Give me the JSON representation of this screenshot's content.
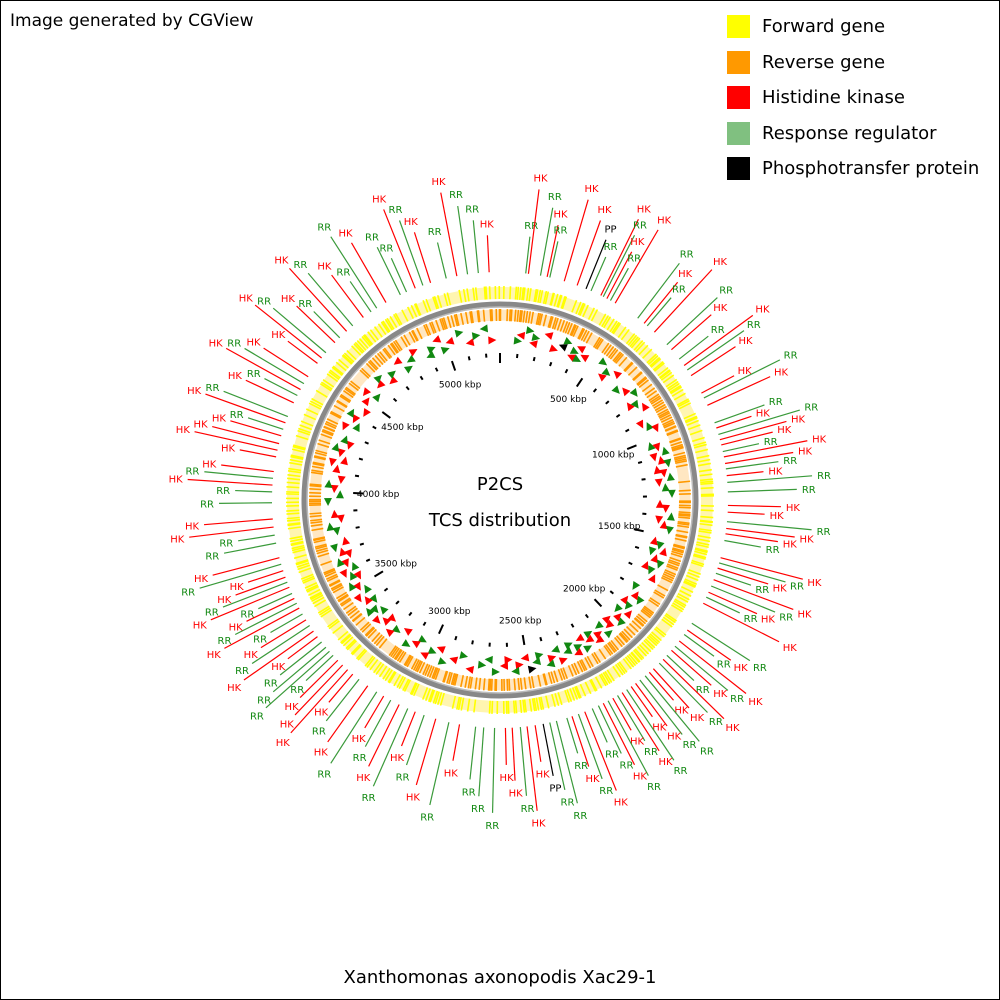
{
  "credit": "Image generated by CGView",
  "center_title": "P2CS",
  "center_subtitle": "TCS distribution",
  "footer": "Xanthomonas axonopodis Xac29-1",
  "legend": [
    {
      "label": "Forward gene",
      "color": "#ffff00"
    },
    {
      "label": "Reverse gene",
      "color": "#ff9900"
    },
    {
      "label": "Histidine kinase",
      "color": "#ff0000"
    },
    {
      "label": "Response regulator",
      "color": "#80c080"
    },
    {
      "label": "Phosphotransfer protein",
      "color": "#000000"
    }
  ],
  "genome_length_kbp": 5280,
  "scale_labels": [
    {
      "kbp": 500,
      "text": "500 kbp"
    },
    {
      "kbp": 1000,
      "text": "1000 kbp"
    },
    {
      "kbp": 1500,
      "text": "1500 kbp"
    },
    {
      "kbp": 2000,
      "text": "2000 kbp"
    },
    {
      "kbp": 2500,
      "text": "2500 kbp"
    },
    {
      "kbp": 3000,
      "text": "3000 kbp"
    },
    {
      "kbp": 3500,
      "text": "3500 kbp"
    },
    {
      "kbp": 4000,
      "text": "4000 kbp"
    },
    {
      "kbp": 4500,
      "text": "4500 kbp"
    },
    {
      "kbp": 5000,
      "text": "5000 kbp"
    }
  ],
  "features": [
    {
      "kbp": 95,
      "type": "RR"
    },
    {
      "kbp": 105,
      "type": "HK"
    },
    {
      "kbp": 150,
      "type": "RR"
    },
    {
      "kbp": 175,
      "type": "HK"
    },
    {
      "kbp": 185,
      "type": "RR"
    },
    {
      "kbp": 240,
      "type": "HK"
    },
    {
      "kbp": 290,
      "type": "HK"
    },
    {
      "kbp": 325,
      "type": "PP"
    },
    {
      "kbp": 345,
      "type": "RR"
    },
    {
      "kbp": 385,
      "type": "HK"
    },
    {
      "kbp": 395,
      "type": "RR"
    },
    {
      "kbp": 410,
      "type": "HK"
    },
    {
      "kbp": 425,
      "type": "RR"
    },
    {
      "kbp": 445,
      "type": "HK"
    },
    {
      "kbp": 545,
      "type": "RR"
    },
    {
      "kbp": 575,
      "type": "HK"
    },
    {
      "kbp": 590,
      "type": "RR"
    },
    {
      "kbp": 625,
      "type": "HK"
    },
    {
      "kbp": 690,
      "type": "RR"
    },
    {
      "kbp": 715,
      "type": "HK"
    },
    {
      "kbp": 760,
      "type": "RR"
    },
    {
      "kbp": 790,
      "type": "HK"
    },
    {
      "kbp": 810,
      "type": "RR"
    },
    {
      "kbp": 835,
      "type": "HK"
    },
    {
      "kbp": 910,
      "type": "HK"
    },
    {
      "kbp": 930,
      "type": "RR"
    },
    {
      "kbp": 960,
      "type": "HK"
    },
    {
      "kbp": 1030,
      "type": "RR"
    },
    {
      "kbp": 1050,
      "type": "HK"
    },
    {
      "kbp": 1075,
      "type": "RR"
    },
    {
      "kbp": 1095,
      "type": "HK"
    },
    {
      "kbp": 1115,
      "type": "HK"
    },
    {
      "kbp": 1140,
      "type": "RR"
    },
    {
      "kbp": 1160,
      "type": "HK"
    },
    {
      "kbp": 1185,
      "type": "HK"
    },
    {
      "kbp": 1205,
      "type": "RR"
    },
    {
      "kbp": 1230,
      "type": "HK"
    },
    {
      "kbp": 1255,
      "type": "RR"
    },
    {
      "kbp": 1290,
      "type": "RR"
    },
    {
      "kbp": 1340,
      "type": "HK"
    },
    {
      "kbp": 1365,
      "type": "HK"
    },
    {
      "kbp": 1400,
      "type": "RR"
    },
    {
      "kbp": 1425,
      "type": "HK"
    },
    {
      "kbp": 1445,
      "type": "HK"
    },
    {
      "kbp": 1470,
      "type": "RR"
    },
    {
      "kbp": 1535,
      "type": "HK"
    },
    {
      "kbp": 1555,
      "type": "RR"
    },
    {
      "kbp": 1575,
      "type": "HK"
    },
    {
      "kbp": 1595,
      "type": "RR"
    },
    {
      "kbp": 1620,
      "type": "HK"
    },
    {
      "kbp": 1645,
      "type": "RR"
    },
    {
      "kbp": 1670,
      "type": "HK"
    },
    {
      "kbp": 1690,
      "type": "RR"
    },
    {
      "kbp": 1715,
      "type": "HK"
    },
    {
      "kbp": 1800,
      "type": "RR"
    },
    {
      "kbp": 1830,
      "type": "HK"
    },
    {
      "kbp": 1850,
      "type": "RR"
    },
    {
      "kbp": 1880,
      "type": "HK"
    },
    {
      "kbp": 1905,
      "type": "RR"
    },
    {
      "kbp": 1925,
      "type": "HK"
    },
    {
      "kbp": 1950,
      "type": "RR"
    },
    {
      "kbp": 1970,
      "type": "HK"
    },
    {
      "kbp": 1990,
      "type": "RR"
    },
    {
      "kbp": 2020,
      "type": "HK"
    },
    {
      "kbp": 2040,
      "type": "HK"
    },
    {
      "kbp": 2060,
      "type": "RR"
    },
    {
      "kbp": 2085,
      "type": "RR"
    },
    {
      "kbp": 2105,
      "type": "HK"
    },
    {
      "kbp": 2125,
      "type": "HK"
    },
    {
      "kbp": 2145,
      "type": "RR"
    },
    {
      "kbp": 2165,
      "type": "HK"
    },
    {
      "kbp": 2185,
      "type": "RR"
    },
    {
      "kbp": 2205,
      "type": "HK"
    },
    {
      "kbp": 2225,
      "type": "RR"
    },
    {
      "kbp": 2245,
      "type": "HK"
    },
    {
      "kbp": 2265,
      "type": "RR"
    },
    {
      "kbp": 2290,
      "type": "RR"
    },
    {
      "kbp": 2320,
      "type": "HK"
    },
    {
      "kbp": 2345,
      "type": "RR"
    },
    {
      "kbp": 2370,
      "type": "HK"
    },
    {
      "kbp": 2390,
      "type": "RR"
    },
    {
      "kbp": 2430,
      "type": "RR"
    },
    {
      "kbp": 2455,
      "type": "RR"
    },
    {
      "kbp": 2480,
      "type": "PP"
    },
    {
      "kbp": 2510,
      "type": "HK"
    },
    {
      "kbp": 2540,
      "type": "HK"
    },
    {
      "kbp": 2565,
      "type": "RR"
    },
    {
      "kbp": 2595,
      "type": "HK"
    },
    {
      "kbp": 2620,
      "type": "HK"
    },
    {
      "kbp": 2660,
      "type": "RR"
    },
    {
      "kbp": 2700,
      "type": "RR"
    },
    {
      "kbp": 2730,
      "type": "RR"
    },
    {
      "kbp": 2790,
      "type": "HK"
    },
    {
      "kbp": 2830,
      "type": "RR"
    },
    {
      "kbp": 2880,
      "type": "HK"
    },
    {
      "kbp": 2925,
      "type": "RR"
    },
    {
      "kbp": 2960,
      "type": "HK"
    },
    {
      "kbp": 2990,
      "type": "RR"
    },
    {
      "kbp": 3025,
      "type": "HK"
    },
    {
      "kbp": 3060,
      "type": "RR"
    },
    {
      "kbp": 3090,
      "type": "HK"
    },
    {
      "kbp": 3120,
      "type": "RR"
    },
    {
      "kbp": 3160,
      "type": "HK"
    },
    {
      "kbp": 3200,
      "type": "RR"
    },
    {
      "kbp": 3230,
      "type": "HK"
    },
    {
      "kbp": 3255,
      "type": "HK"
    },
    {
      "kbp": 3280,
      "type": "HK"
    },
    {
      "kbp": 3305,
      "type": "HK"
    },
    {
      "kbp": 3330,
      "type": "RR"
    },
    {
      "kbp": 3350,
      "type": "RR"
    },
    {
      "kbp": 3370,
      "type": "RR"
    },
    {
      "kbp": 3395,
      "type": "RR"
    },
    {
      "kbp": 3420,
      "type": "HK"
    },
    {
      "kbp": 3445,
      "type": "HK"
    },
    {
      "kbp": 3470,
      "type": "RR"
    },
    {
      "kbp": 3495,
      "type": "HK"
    },
    {
      "kbp": 3520,
      "type": "RR"
    },
    {
      "kbp": 3545,
      "type": "HK"
    },
    {
      "kbp": 3565,
      "type": "RR"
    },
    {
      "kbp": 3585,
      "type": "HK"
    },
    {
      "kbp": 3605,
      "type": "RR"
    },
    {
      "kbp": 3630,
      "type": "HK"
    },
    {
      "kbp": 3650,
      "type": "RR"
    },
    {
      "kbp": 3670,
      "type": "HK"
    },
    {
      "kbp": 3695,
      "type": "HK"
    },
    {
      "kbp": 3720,
      "type": "RR"
    },
    {
      "kbp": 3745,
      "type": "HK"
    },
    {
      "kbp": 3800,
      "type": "RR"
    },
    {
      "kbp": 3830,
      "type": "RR"
    },
    {
      "kbp": 3860,
      "type": "HK"
    },
    {
      "kbp": 3890,
      "type": "HK"
    },
    {
      "kbp": 3950,
      "type": "RR"
    },
    {
      "kbp": 3990,
      "type": "RR"
    },
    {
      "kbp": 4015,
      "type": "HK"
    },
    {
      "kbp": 4040,
      "type": "RR"
    },
    {
      "kbp": 4065,
      "type": "HK"
    },
    {
      "kbp": 4120,
      "type": "HK"
    },
    {
      "kbp": 4145,
      "type": "HK"
    },
    {
      "kbp": 4170,
      "type": "HK"
    },
    {
      "kbp": 4200,
      "type": "HK"
    },
    {
      "kbp": 4225,
      "type": "RR"
    },
    {
      "kbp": 4250,
      "type": "HK"
    },
    {
      "kbp": 4275,
      "type": "RR"
    },
    {
      "kbp": 4330,
      "type": "HK"
    },
    {
      "kbp": 4360,
      "type": "RR"
    },
    {
      "kbp": 4385,
      "type": "HK"
    },
    {
      "kbp": 4410,
      "type": "RR"
    },
    {
      "kbp": 4440,
      "type": "HK"
    },
    {
      "kbp": 4500,
      "type": "HK"
    },
    {
      "kbp": 4525,
      "type": "HK"
    },
    {
      "kbp": 4550,
      "type": "RR"
    },
    {
      "kbp": 4600,
      "type": "HK"
    },
    {
      "kbp": 4625,
      "type": "RR"
    },
    {
      "kbp": 4660,
      "type": "HK"
    },
    {
      "kbp": 4690,
      "type": "RR"
    },
    {
      "kbp": 4740,
      "type": "HK"
    },
    {
      "kbp": 4775,
      "type": "RR"
    },
    {
      "kbp": 4800,
      "type": "RR"
    },
    {
      "kbp": 4840,
      "type": "HK"
    },
    {
      "kbp": 4900,
      "type": "RR"
    },
    {
      "kbp": 4925,
      "type": "RR"
    },
    {
      "kbp": 4960,
      "type": "HK"
    },
    {
      "kbp": 4990,
      "type": "RR"
    },
    {
      "kbp": 5020,
      "type": "HK"
    },
    {
      "kbp": 5080,
      "type": "RR"
    },
    {
      "kbp": 5120,
      "type": "HK"
    },
    {
      "kbp": 5160,
      "type": "RR"
    },
    {
      "kbp": 5200,
      "type": "RR"
    },
    {
      "kbp": 5240,
      "type": "HK"
    }
  ]
}
